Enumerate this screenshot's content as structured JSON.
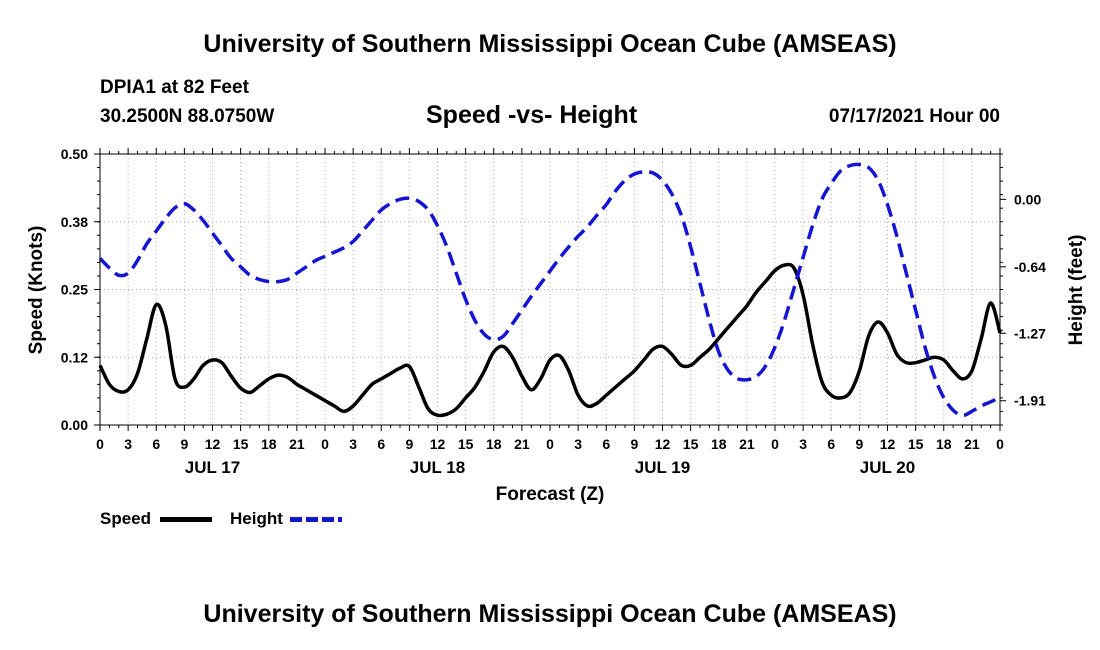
{
  "header": {
    "title": "University of Southern Mississippi Ocean Cube (AMSEAS)",
    "station": "DPIA1 at 82 Feet",
    "location": "30.2500N  88.0750W",
    "date": "07/17/2021 Hour 00"
  },
  "footer": {
    "title": "University of Southern Mississippi Ocean Cube (AMSEAS)"
  },
  "chart_data": {
    "type": "line",
    "title": "Speed -vs- Height",
    "xlabel": "Forecast (Z)",
    "ylabel": "Speed (Knots)",
    "y2label": "Height (feet)",
    "xlim": [
      0,
      96
    ],
    "ylim": [
      0,
      0.5
    ],
    "y2lim": [
      -2.14,
      0.43
    ],
    "xticks": [
      0,
      3,
      6,
      9,
      12,
      15,
      18,
      21,
      24,
      27,
      30,
      33,
      36,
      39,
      42,
      45,
      48,
      51,
      54,
      57,
      60,
      63,
      66,
      69,
      72,
      75,
      78,
      81,
      84,
      87,
      90,
      93,
      96
    ],
    "xtick_labels": [
      "0",
      "3",
      "6",
      "9",
      "12",
      "15",
      "18",
      "21",
      "0",
      "3",
      "6",
      "9",
      "12",
      "15",
      "18",
      "21",
      "0",
      "3",
      "6",
      "9",
      "12",
      "15",
      "18",
      "21",
      "0",
      "3",
      "6",
      "9",
      "12",
      "15",
      "18",
      "21",
      "0"
    ],
    "day_labels": [
      {
        "x": 12,
        "label": "JUL 17"
      },
      {
        "x": 36,
        "label": "JUL 18"
      },
      {
        "x": 60,
        "label": "JUL 19"
      },
      {
        "x": 84,
        "label": "JUL 20"
      }
    ],
    "yticks": [
      0.0,
      0.125,
      0.25,
      0.375,
      0.5
    ],
    "ytick_labels": [
      "0.00",
      "0.12",
      "0.25",
      "0.38",
      "0.50"
    ],
    "y2ticks": [
      0.0,
      -0.64,
      -1.27,
      -1.91
    ],
    "y2tick_labels": [
      "0.00",
      "-0.64",
      "-1.27",
      "-1.91"
    ],
    "legend_position": "bottom-left",
    "series": [
      {
        "name": "Speed",
        "axis": "left",
        "color": "#000000",
        "dash": "solid",
        "x": [
          0,
          1,
          2,
          3,
          4,
          5,
          6,
          7,
          8,
          9,
          10,
          11,
          12,
          13,
          14,
          15,
          16,
          17,
          18,
          19,
          20,
          21,
          22,
          23,
          24,
          25,
          26,
          27,
          28,
          29,
          30,
          31,
          32,
          33,
          34,
          35,
          36,
          37,
          38,
          39,
          40,
          41,
          42,
          43,
          44,
          45,
          46,
          47,
          48,
          49,
          50,
          51,
          52,
          53,
          54,
          55,
          56,
          57,
          58,
          59,
          60,
          61,
          62,
          63,
          64,
          65,
          66,
          67,
          68,
          69,
          70,
          71,
          72,
          73,
          74,
          75,
          76,
          77,
          78,
          79,
          80,
          81,
          82,
          83,
          84,
          85,
          86,
          87,
          88,
          89,
          90,
          91,
          92,
          93,
          94,
          95,
          96
        ],
        "values": [
          0.11,
          0.075,
          0.062,
          0.065,
          0.095,
          0.16,
          0.222,
          0.185,
          0.085,
          0.07,
          0.085,
          0.11,
          0.12,
          0.115,
          0.09,
          0.068,
          0.06,
          0.072,
          0.085,
          0.092,
          0.088,
          0.075,
          0.065,
          0.055,
          0.045,
          0.035,
          0.025,
          0.035,
          0.055,
          0.075,
          0.085,
          0.095,
          0.105,
          0.108,
          0.07,
          0.03,
          0.018,
          0.02,
          0.03,
          0.05,
          0.07,
          0.1,
          0.135,
          0.145,
          0.125,
          0.09,
          0.065,
          0.085,
          0.12,
          0.128,
          0.1,
          0.055,
          0.035,
          0.04,
          0.055,
          0.07,
          0.085,
          0.1,
          0.12,
          0.14,
          0.145,
          0.13,
          0.11,
          0.11,
          0.125,
          0.14,
          0.16,
          0.18,
          0.2,
          0.22,
          0.245,
          0.265,
          0.285,
          0.295,
          0.29,
          0.24,
          0.15,
          0.08,
          0.055,
          0.05,
          0.06,
          0.1,
          0.165,
          0.19,
          0.17,
          0.13,
          0.115,
          0.115,
          0.12,
          0.125,
          0.12,
          0.1,
          0.085,
          0.1,
          0.16,
          0.225,
          0.17
        ]
      },
      {
        "name": "Height",
        "axis": "right",
        "color": "#1414d2",
        "dash": "dashed",
        "x": [
          0,
          1,
          2,
          3,
          4,
          5,
          6,
          7,
          8,
          9,
          10,
          11,
          12,
          13,
          14,
          15,
          16,
          17,
          18,
          19,
          20,
          21,
          22,
          23,
          24,
          25,
          26,
          27,
          28,
          29,
          30,
          31,
          32,
          33,
          34,
          35,
          36,
          37,
          38,
          39,
          40,
          41,
          42,
          43,
          44,
          45,
          46,
          47,
          48,
          49,
          50,
          51,
          52,
          53,
          54,
          55,
          56,
          57,
          58,
          59,
          60,
          61,
          62,
          63,
          64,
          65,
          66,
          67,
          68,
          69,
          70,
          71,
          72,
          73,
          74,
          75,
          76,
          77,
          78,
          79,
          80,
          81,
          82,
          83,
          84,
          85,
          86,
          87,
          88,
          89,
          90,
          91,
          92,
          93,
          94,
          95,
          96
        ],
        "values": [
          -0.56,
          -0.65,
          -0.72,
          -0.7,
          -0.58,
          -0.42,
          -0.3,
          -0.18,
          -0.08,
          -0.04,
          -0.1,
          -0.2,
          -0.32,
          -0.44,
          -0.56,
          -0.64,
          -0.72,
          -0.76,
          -0.78,
          -0.78,
          -0.76,
          -0.7,
          -0.64,
          -0.58,
          -0.54,
          -0.5,
          -0.46,
          -0.4,
          -0.3,
          -0.2,
          -0.1,
          -0.04,
          0.0,
          0.01,
          -0.02,
          -0.1,
          -0.25,
          -0.45,
          -0.7,
          -0.95,
          -1.15,
          -1.28,
          -1.33,
          -1.3,
          -1.18,
          -1.05,
          -0.92,
          -0.8,
          -0.68,
          -0.56,
          -0.45,
          -0.35,
          -0.26,
          -0.15,
          -0.05,
          0.08,
          0.18,
          0.24,
          0.26,
          0.25,
          0.18,
          0.05,
          -0.15,
          -0.45,
          -0.8,
          -1.15,
          -1.45,
          -1.62,
          -1.7,
          -1.71,
          -1.68,
          -1.58,
          -1.4,
          -1.15,
          -0.85,
          -0.55,
          -0.25,
          0.0,
          0.15,
          0.27,
          0.32,
          0.33,
          0.3,
          0.18,
          -0.05,
          -0.35,
          -0.7,
          -1.05,
          -1.4,
          -1.68,
          -1.88,
          -2.0,
          -2.05,
          -2.01,
          -1.96,
          -1.92,
          -1.88
        ]
      }
    ]
  }
}
